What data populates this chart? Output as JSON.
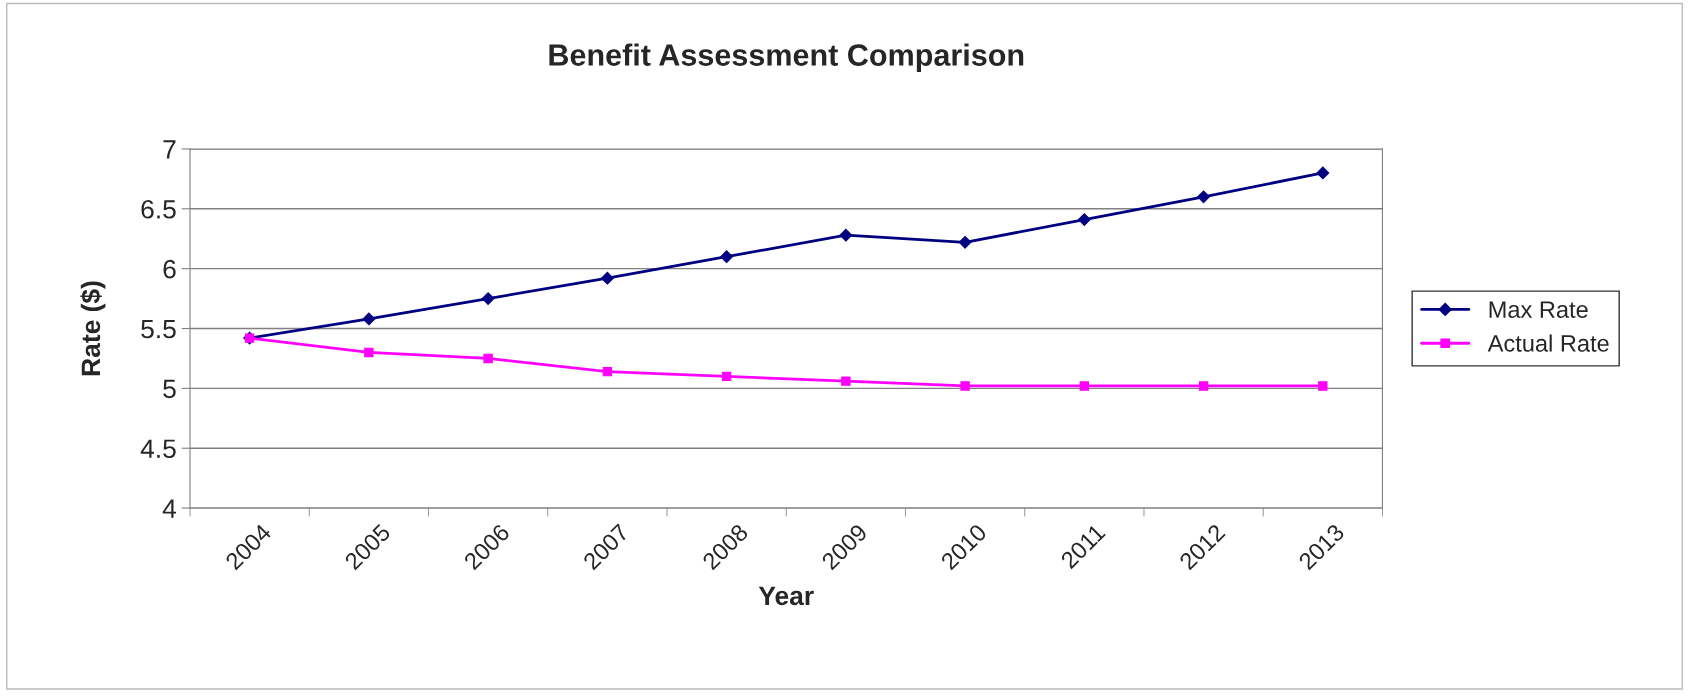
{
  "chart_data": {
    "type": "line",
    "title": "Benefit Assessment Comparison",
    "xlabel": "Year",
    "ylabel": "Rate ($)",
    "categories": [
      "2004",
      "2005",
      "2006",
      "2007",
      "2008",
      "2009",
      "2010",
      "2011",
      "2012",
      "2013"
    ],
    "series": [
      {
        "name": "Max Rate",
        "color": "#000080",
        "marker": "diamond",
        "values": [
          5.42,
          5.58,
          5.75,
          5.92,
          6.1,
          6.28,
          6.22,
          6.41,
          6.6,
          6.8
        ]
      },
      {
        "name": "Actual Rate",
        "color": "#ff00ff",
        "marker": "square",
        "values": [
          5.42,
          5.3,
          5.25,
          5.14,
          5.1,
          5.06,
          5.02,
          5.02,
          5.02,
          5.02
        ]
      }
    ],
    "ylim": [
      4,
      7
    ],
    "yticks": [
      4,
      4.5,
      5,
      5.5,
      6,
      6.5,
      7
    ],
    "grid": "y",
    "legend": "right",
    "line_style": "solid"
  }
}
